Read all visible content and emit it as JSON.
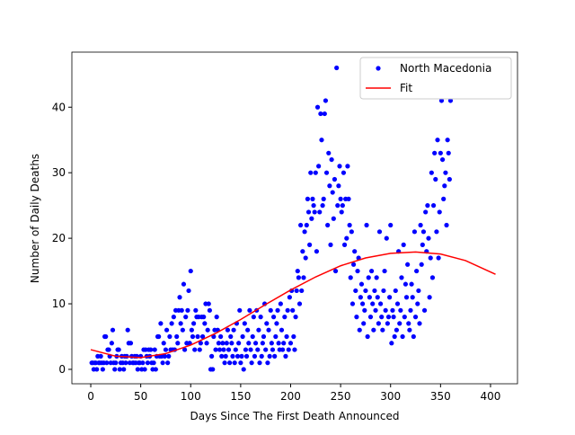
{
  "chart_data": {
    "type": "scatter",
    "xlabel": "Days Since The First Death Announced",
    "ylabel": "Number of Daily Deaths",
    "xlim": [
      -18.9,
      427
    ],
    "ylim": [
      -2.2,
      48.4
    ],
    "xticks": [
      0,
      50,
      100,
      150,
      200,
      250,
      300,
      350,
      400
    ],
    "yticks": [
      0,
      10,
      20,
      30,
      40
    ],
    "legend": "upper right",
    "series": [
      {
        "name": "North Macedonia",
        "color": "#0000ff",
        "style": "marker",
        "x": [
          1,
          2,
          3,
          4,
          5,
          6,
          7,
          8,
          9,
          10,
          11,
          12,
          13,
          14,
          15,
          16,
          17,
          18,
          19,
          20,
          21,
          22,
          23,
          24,
          25,
          26,
          27,
          28,
          29,
          30,
          31,
          32,
          33,
          34,
          35,
          36,
          37,
          38,
          39,
          40,
          41,
          42,
          43,
          44,
          45,
          46,
          47,
          48,
          49,
          50,
          51,
          52,
          53,
          54,
          55,
          56,
          57,
          58,
          59,
          60,
          61,
          62,
          63,
          64,
          65,
          66,
          67,
          68,
          69,
          70,
          71,
          72,
          73,
          74,
          75,
          76,
          77,
          78,
          79,
          80,
          81,
          82,
          83,
          84,
          85,
          86,
          87,
          88,
          89,
          90,
          91,
          92,
          93,
          94,
          95,
          96,
          97,
          98,
          99,
          100,
          101,
          102,
          103,
          104,
          105,
          106,
          107,
          108,
          109,
          110,
          111,
          112,
          113,
          114,
          115,
          116,
          117,
          118,
          119,
          120,
          121,
          122,
          123,
          124,
          125,
          126,
          127,
          128,
          129,
          130,
          131,
          132,
          133,
          134,
          135,
          136,
          137,
          138,
          139,
          140,
          141,
          142,
          143,
          144,
          145,
          146,
          147,
          148,
          149,
          150,
          151,
          152,
          153,
          154,
          155,
          156,
          157,
          158,
          159,
          160,
          161,
          162,
          163,
          164,
          165,
          166,
          167,
          168,
          169,
          170,
          171,
          172,
          173,
          174,
          175,
          176,
          177,
          178,
          179,
          180,
          181,
          182,
          183,
          184,
          185,
          186,
          187,
          188,
          189,
          190,
          191,
          192,
          193,
          194,
          195,
          196,
          197,
          198,
          199,
          200,
          201,
          202,
          203,
          204,
          205,
          206,
          207,
          208,
          209,
          210,
          211,
          212,
          213,
          214,
          215,
          216,
          217,
          218,
          219,
          220,
          221,
          222,
          223,
          224,
          225,
          226,
          227,
          228,
          229,
          230,
          231,
          232,
          233,
          234,
          235,
          236,
          237,
          238,
          239,
          240,
          241,
          242,
          243,
          244,
          245,
          246,
          247,
          248,
          249,
          250,
          251,
          252,
          253,
          254,
          255,
          256,
          257,
          258,
          259,
          260,
          261,
          262,
          263,
          264,
          265,
          266,
          267,
          268,
          269,
          270,
          271,
          272,
          273,
          274,
          275,
          276,
          277,
          278,
          279,
          280,
          281,
          282,
          283,
          284,
          285,
          286,
          287,
          288,
          289,
          290,
          291,
          292,
          293,
          294,
          295,
          296,
          297,
          298,
          299,
          300,
          301,
          302,
          303,
          304,
          305,
          306,
          307,
          308,
          309,
          310,
          311,
          312,
          313,
          314,
          315,
          316,
          317,
          318,
          319,
          320,
          321,
          322,
          323,
          324,
          325,
          326,
          327,
          328,
          329,
          330,
          331,
          332,
          333,
          334,
          335,
          336,
          337,
          338,
          339,
          340,
          341,
          342,
          343,
          344,
          345,
          346,
          347,
          348,
          349,
          350,
          351,
          352,
          353,
          354,
          355,
          356,
          357,
          358,
          359,
          360
        ],
        "values": [
          1,
          1,
          0,
          1,
          1,
          0,
          2,
          1,
          1,
          2,
          1,
          0,
          1,
          5,
          5,
          1,
          3,
          3,
          2,
          1,
          4,
          6,
          1,
          0,
          1,
          2,
          3,
          3,
          0,
          1,
          2,
          1,
          0,
          2,
          1,
          2,
          6,
          4,
          1,
          4,
          2,
          1,
          1,
          2,
          1,
          2,
          0,
          1,
          1,
          2,
          0,
          1,
          3,
          0,
          3,
          2,
          1,
          3,
          2,
          3,
          1,
          0,
          1,
          3,
          0,
          2,
          5,
          5,
          2,
          7,
          2,
          1,
          4,
          2,
          3,
          6,
          1,
          2,
          5,
          3,
          7,
          3,
          8,
          3,
          9,
          5,
          4,
          9,
          11,
          7,
          9,
          6,
          13,
          3,
          8,
          4,
          9,
          12,
          4,
          15,
          6,
          5,
          7,
          3,
          9,
          8,
          5,
          8,
          3,
          4,
          8,
          5,
          8,
          7,
          10,
          4,
          6,
          10,
          9,
          0,
          2,
          0,
          5,
          6,
          3,
          8,
          6,
          4,
          3,
          5,
          2,
          4,
          3,
          1,
          2,
          4,
          6,
          3,
          1,
          5,
          4,
          2,
          6,
          1,
          3,
          7,
          2,
          4,
          9,
          1,
          2,
          5,
          0,
          7,
          3,
          2,
          6,
          4,
          9,
          3,
          1,
          5,
          8,
          2,
          4,
          9,
          3,
          6,
          1,
          8,
          2,
          4,
          5,
          10,
          3,
          7,
          1,
          6,
          2,
          9,
          4,
          3,
          8,
          2,
          5,
          7,
          9,
          4,
          3,
          10,
          6,
          3,
          4,
          8,
          2,
          5,
          9,
          3,
          11,
          4,
          12,
          9,
          5,
          3,
          8,
          12,
          15,
          14,
          10,
          22,
          12,
          18,
          14,
          21,
          17,
          22,
          26,
          24,
          19,
          30,
          23,
          26,
          25,
          24,
          30,
          18,
          40,
          31,
          24,
          39,
          35,
          25,
          26,
          39,
          41,
          30,
          22,
          33,
          28,
          19,
          32,
          27,
          23,
          29,
          15,
          46,
          25,
          28,
          31,
          26,
          24,
          25,
          30,
          19,
          26,
          20,
          31,
          26,
          22,
          14,
          21,
          10,
          16,
          18,
          12,
          8,
          15,
          17,
          6,
          11,
          13,
          10,
          7,
          9,
          12,
          22,
          5,
          14,
          11,
          8,
          15,
          10,
          6,
          12,
          9,
          14,
          11,
          7,
          21,
          10,
          8,
          6,
          12,
          15,
          9,
          20,
          7,
          8,
          11,
          22,
          4,
          9,
          8,
          5,
          12,
          6,
          10,
          18,
          7,
          9,
          14,
          5,
          19,
          8,
          13,
          11,
          16,
          7,
          6,
          9,
          13,
          11,
          5,
          21,
          8,
          15,
          10,
          12,
          7,
          22,
          16,
          19,
          21,
          9,
          24,
          18,
          25,
          20,
          11,
          17,
          30,
          14,
          25,
          33,
          29,
          21,
          35,
          17,
          24,
          33,
          41,
          32,
          26,
          28,
          30,
          22,
          35,
          33,
          29,
          41
        ]
      },
      {
        "name": "Fit",
        "color": "#ff0000",
        "style": "line",
        "x": [
          0,
          25,
          50,
          75,
          100,
          125,
          150,
          175,
          200,
          225,
          250,
          275,
          300,
          325,
          350,
          375,
          405
        ],
        "values": [
          3.0,
          2.0,
          1.8,
          2.4,
          3.7,
          5.5,
          7.6,
          9.9,
          12.1,
          14.1,
          15.8,
          17.0,
          17.7,
          17.9,
          17.6,
          16.6,
          14.5
        ]
      }
    ]
  }
}
